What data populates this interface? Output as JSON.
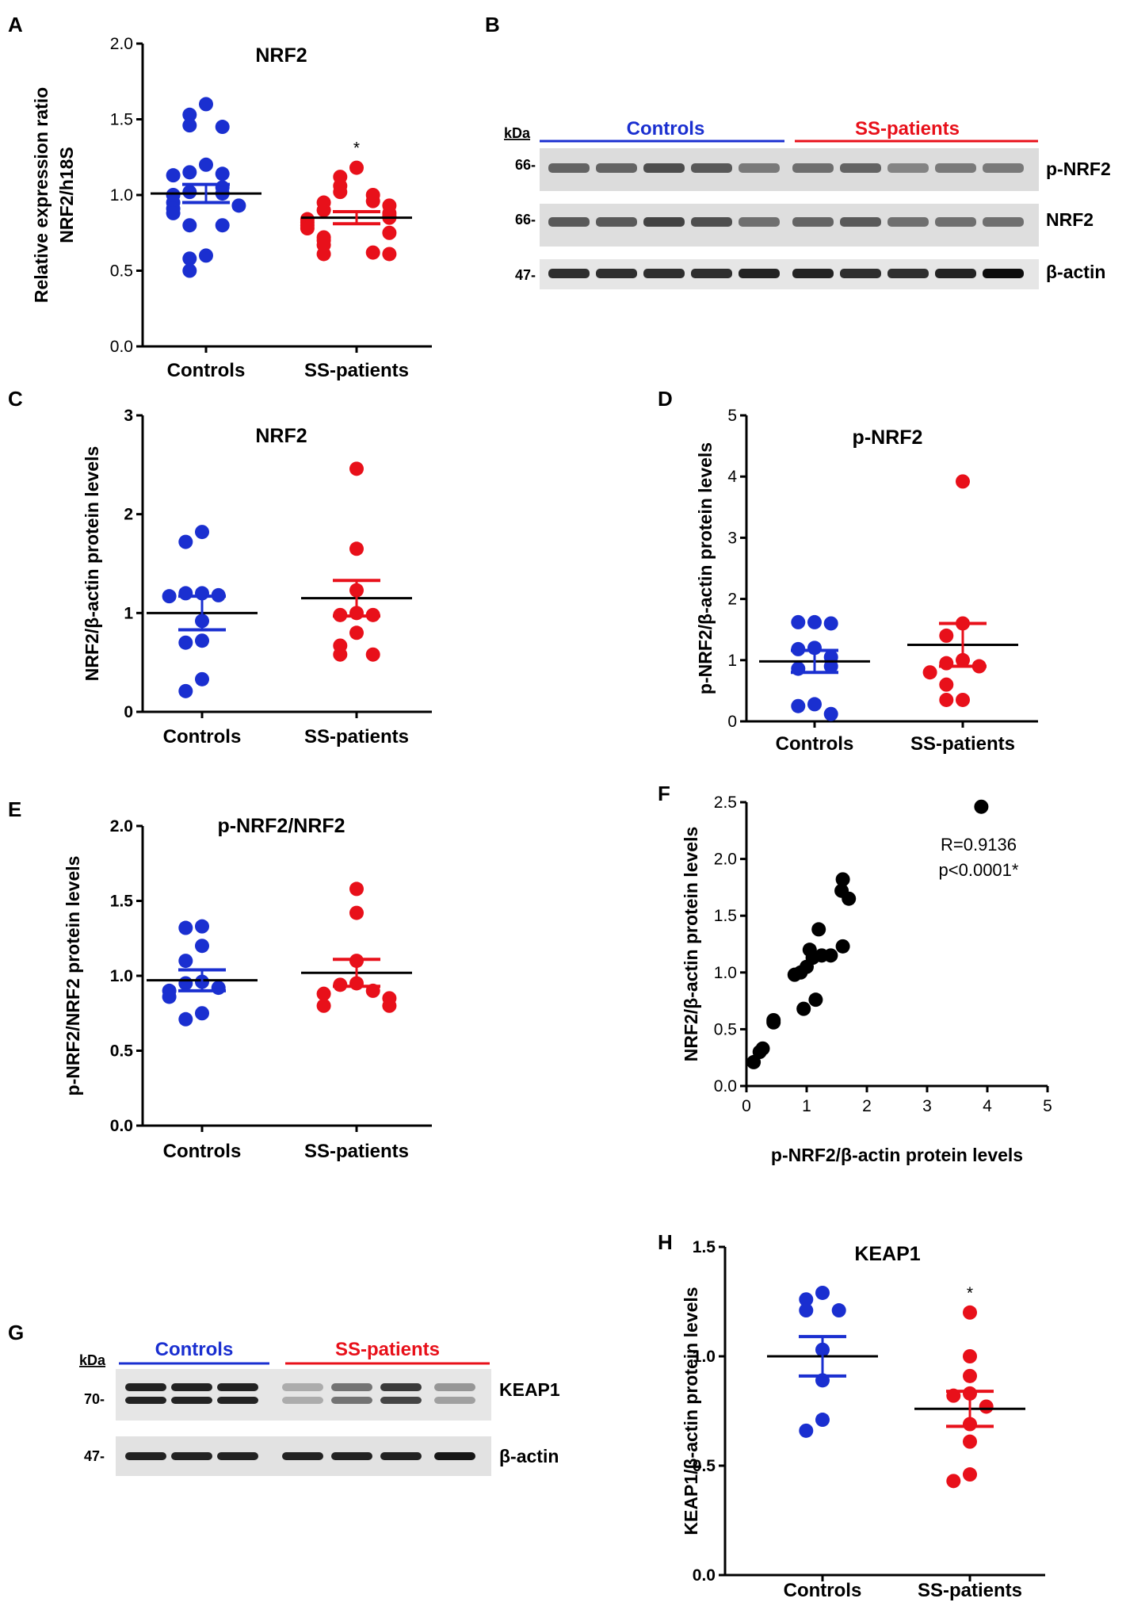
{
  "panels": {
    "A": {
      "letter": "A"
    },
    "B": {
      "letter": "B"
    },
    "C": {
      "letter": "C"
    },
    "D": {
      "letter": "D"
    },
    "E": {
      "letter": "E"
    },
    "F": {
      "letter": "F"
    },
    "G": {
      "letter": "G"
    },
    "H": {
      "letter": "H"
    }
  },
  "colors": {
    "controls": "#1a2fd0",
    "ss_patients": "#e8101a",
    "scatter": "#000000"
  },
  "chart_data": [
    {
      "id": "A",
      "type": "scatter",
      "title": "NRF2",
      "ylabel": "Relative expression ratio NRF2/h18S",
      "ylabel_lines": [
        "Relative expression ratio",
        "NRF2/h18S"
      ],
      "categories": [
        "Controls",
        "SS-patients"
      ],
      "ylim": [
        0,
        2.0
      ],
      "yticks": [
        "0.0",
        "0.5",
        "1.0",
        "1.5",
        "2.0"
      ],
      "significance": [
        "",
        "*"
      ],
      "series": [
        {
          "name": "Controls",
          "mean": 1.01,
          "sem": 0.06,
          "values": [
            1.6,
            1.53,
            1.46,
            1.45,
            1.2,
            1.15,
            1.14,
            1.13,
            1.05,
            1.02,
            1.01,
            1.0,
            0.95,
            0.93,
            0.91,
            0.88,
            0.8,
            0.8,
            0.6,
            0.58,
            0.5
          ]
        },
        {
          "name": "SS-patients",
          "mean": 0.85,
          "sem": 0.04,
          "values": [
            1.18,
            1.12,
            1.06,
            1.02,
            1.0,
            0.96,
            0.95,
            0.93,
            0.9,
            0.88,
            0.86,
            0.85,
            0.84,
            0.82,
            0.8,
            0.78,
            0.75,
            0.72,
            0.7,
            0.67,
            0.62,
            0.61,
            0.61
          ]
        }
      ]
    },
    {
      "id": "C",
      "type": "scatter",
      "title": "NRF2",
      "ylabel": "NRF2/β-actin protein levels",
      "categories": [
        "Controls",
        "SS-patients"
      ],
      "ylim": [
        0,
        3
      ],
      "yticks": [
        "0",
        "1",
        "2",
        "3"
      ],
      "series": [
        {
          "name": "Controls",
          "mean": 1.0,
          "sem": 0.17,
          "values": [
            1.82,
            1.72,
            1.2,
            1.2,
            1.18,
            1.17,
            0.92,
            0.72,
            0.7,
            0.33,
            0.21
          ]
        },
        {
          "name": "SS-patients",
          "mean": 1.15,
          "sem": 0.18,
          "values": [
            2.46,
            1.65,
            1.23,
            1.0,
            0.98,
            0.98,
            0.8,
            0.67,
            0.58,
            0.58
          ]
        }
      ]
    },
    {
      "id": "D",
      "type": "scatter",
      "title": "p-NRF2",
      "ylabel": "p-NRF2/β-actin protein levels",
      "categories": [
        "Controls",
        "SS-patients"
      ],
      "ylim": [
        0,
        5
      ],
      "yticks": [
        "0",
        "1",
        "2",
        "3",
        "4",
        "5"
      ],
      "series": [
        {
          "name": "Controls",
          "mean": 0.98,
          "sem": 0.18,
          "values": [
            1.62,
            1.62,
            1.6,
            1.2,
            1.18,
            1.05,
            0.86,
            0.9,
            0.28,
            0.25,
            0.12
          ]
        },
        {
          "name": "SS-patients",
          "mean": 1.25,
          "sem": 0.35,
          "values": [
            3.92,
            1.6,
            1.4,
            1.0,
            0.95,
            0.9,
            0.8,
            0.6,
            0.35,
            0.35
          ]
        }
      ]
    },
    {
      "id": "E",
      "type": "scatter",
      "title": "p-NRF2/NRF2",
      "ylabel": "p-NRF2/NRF2 protein levels",
      "categories": [
        "Controls",
        "SS-patients"
      ],
      "ylim": [
        0,
        2.0
      ],
      "yticks": [
        "0.0",
        "0.5",
        "1.0",
        "1.5",
        "2.0"
      ],
      "series": [
        {
          "name": "Controls",
          "mean": 0.97,
          "sem": 0.07,
          "values": [
            1.33,
            1.32,
            1.2,
            1.1,
            0.96,
            0.95,
            0.92,
            0.9,
            0.86,
            0.75,
            0.71
          ]
        },
        {
          "name": "SS-patients",
          "mean": 1.02,
          "sem": 0.09,
          "values": [
            1.58,
            1.42,
            1.1,
            0.95,
            0.94,
            0.9,
            0.88,
            0.85,
            0.8,
            0.8
          ]
        }
      ]
    },
    {
      "id": "F",
      "type": "scatter",
      "title": "",
      "xlabel": "p-NRF2/β-actin protein levels",
      "ylabel": "NRF2/β-actin protein levels",
      "xlim": [
        0,
        5
      ],
      "ylim": [
        0,
        2.5
      ],
      "xticks": [
        "0",
        "1",
        "2",
        "3",
        "4",
        "5"
      ],
      "yticks": [
        "0.0",
        "0.5",
        "1.0",
        "1.5",
        "2.0",
        "2.5"
      ],
      "annotations": [
        "R=0.9136",
        "p<0.0001*"
      ],
      "points": [
        [
          3.9,
          2.46
        ],
        [
          1.6,
          1.82
        ],
        [
          1.58,
          1.72
        ],
        [
          1.7,
          1.65
        ],
        [
          1.2,
          1.38
        ],
        [
          1.6,
          1.23
        ],
        [
          1.05,
          1.2
        ],
        [
          1.25,
          1.15
        ],
        [
          1.4,
          1.15
        ],
        [
          1.1,
          1.13
        ],
        [
          1.0,
          1.05
        ],
        [
          0.9,
          1.0
        ],
        [
          0.8,
          0.98
        ],
        [
          1.15,
          0.76
        ],
        [
          0.95,
          0.68
        ],
        [
          0.45,
          0.58
        ],
        [
          0.45,
          0.56
        ],
        [
          0.27,
          0.33
        ],
        [
          0.22,
          0.3
        ],
        [
          0.12,
          0.21
        ]
      ]
    },
    {
      "id": "H",
      "type": "scatter",
      "title": "KEAP1",
      "ylabel": "KEAP1/β-actin protein levels",
      "categories": [
        "Controls",
        "SS-patients"
      ],
      "ylim": [
        0,
        1.5
      ],
      "yticks": [
        "0.0",
        "0.5",
        "1.0",
        "1.5"
      ],
      "significance": [
        "",
        "*"
      ],
      "series": [
        {
          "name": "Controls",
          "mean": 1.0,
          "sem": 0.09,
          "values": [
            1.29,
            1.26,
            1.21,
            1.21,
            1.03,
            0.89,
            0.71,
            0.66
          ]
        },
        {
          "name": "SS-patients",
          "mean": 0.76,
          "sem": 0.08,
          "values": [
            1.2,
            1.0,
            0.91,
            0.83,
            0.82,
            0.77,
            0.69,
            0.61,
            0.46,
            0.43
          ]
        }
      ]
    }
  ],
  "blots": {
    "B": {
      "kda_label": "kDa",
      "group_controls": "Controls",
      "group_ss": "SS-patients",
      "rows": [
        {
          "marker": "66-",
          "label": "p-NRF2"
        },
        {
          "marker": "66-",
          "label": "NRF2"
        },
        {
          "marker": "47-",
          "label": "β-actin"
        }
      ]
    },
    "G": {
      "kda_label": "kDa",
      "group_controls": "Controls",
      "group_ss": "SS-patients",
      "rows": [
        {
          "marker": "70-",
          "label": "KEAP1"
        },
        {
          "marker": "47-",
          "label": "β-actin"
        }
      ]
    }
  }
}
